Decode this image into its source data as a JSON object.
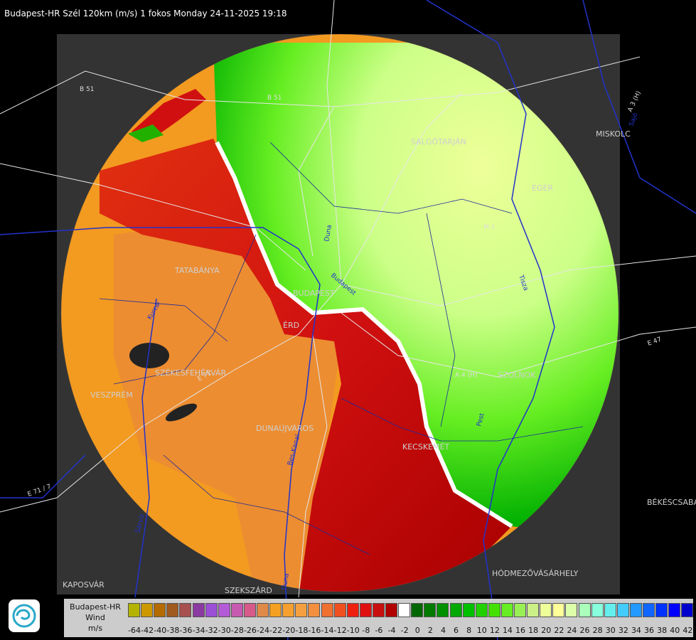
{
  "title": "Budapest-HR Szél 120km (m/s) 1 fokos Monday 24-11-2025 19:18",
  "cities": [
    {
      "name": "SALGÓTARJÁN"
    },
    {
      "name": "EGER"
    },
    {
      "name": "MISKOLC"
    },
    {
      "name": "TATABÁNYA"
    },
    {
      "name": "BUDAPEST"
    },
    {
      "name": "ÉRD"
    },
    {
      "name": "SZÉKESFEHÉRVÁR"
    },
    {
      "name": "VESZPRÉM"
    },
    {
      "name": "DUNAÚJVÁROS"
    },
    {
      "name": "KECSKEMÉT"
    },
    {
      "name": "SZOLNOK"
    },
    {
      "name": "KAPOSVÁR"
    },
    {
      "name": "SZEKSZÁRD"
    },
    {
      "name": "HÓDMEZŐVÁSÁRHELY"
    },
    {
      "name": "BÉKÉSCSABA"
    }
  ],
  "roads": [
    "B 51",
    "B 51",
    "A 3 (H)",
    "M 1",
    "A 4 (H)",
    "E 71",
    "E 71 / 7",
    "E 47"
  ],
  "rivers": [
    "Duna",
    "Budapest",
    "Sajó",
    "Tisza",
    "Pest",
    "Duna",
    "Kurcai",
    "Sárvíz",
    "Bes-Kanal"
  ],
  "legend": {
    "line1": "Budapest-HR",
    "line2": "Wind",
    "line3": "m/s",
    "ticks": [
      "-64",
      "-42",
      "-40",
      "-38",
      "-36",
      "-34",
      "-32",
      "-30",
      "-28",
      "-26",
      "-24",
      "-22",
      "-20",
      "-18",
      "-16",
      "-14",
      "-12",
      "-10",
      "-8",
      "-6",
      "-4",
      "-2",
      "0",
      "2",
      "4",
      "6",
      "8",
      "10",
      "12",
      "14",
      "16",
      "18",
      "20",
      "22",
      "24",
      "26",
      "28",
      "30",
      "32",
      "34",
      "36",
      "38",
      "40",
      "42"
    ],
    "colors": [
      "#b3b300",
      "#cc9900",
      "#b36b00",
      "#a05a1e",
      "#a65050",
      "#8a3aa0",
      "#9b4fd6",
      "#b35ad6",
      "#c75ab0",
      "#d65a8a",
      "#e08a4a",
      "#f5a020",
      "#f5a030",
      "#f5a040",
      "#f29040",
      "#f07030",
      "#f05020",
      "#f02010",
      "#e01010",
      "#c81010",
      "#b00000",
      "#ffffff",
      "#006600",
      "#007a00",
      "#009000",
      "#00a800",
      "#00c000",
      "#22d000",
      "#44e000",
      "#66ee22",
      "#99f055",
      "#ccf088",
      "#eeff99",
      "#ffff99",
      "#ddffaa",
      "#aaffbb",
      "#88ffdd",
      "#66eeee",
      "#44ccff",
      "#2299ff",
      "#1166ff",
      "#0033ff",
      "#0000ff",
      "#0000cc"
    ]
  },
  "map_colors": {
    "frame": "#333333",
    "approaching": "#f29a20",
    "receding_strong": "#ccff88",
    "green": "#22c000",
    "red": "#e01010"
  }
}
